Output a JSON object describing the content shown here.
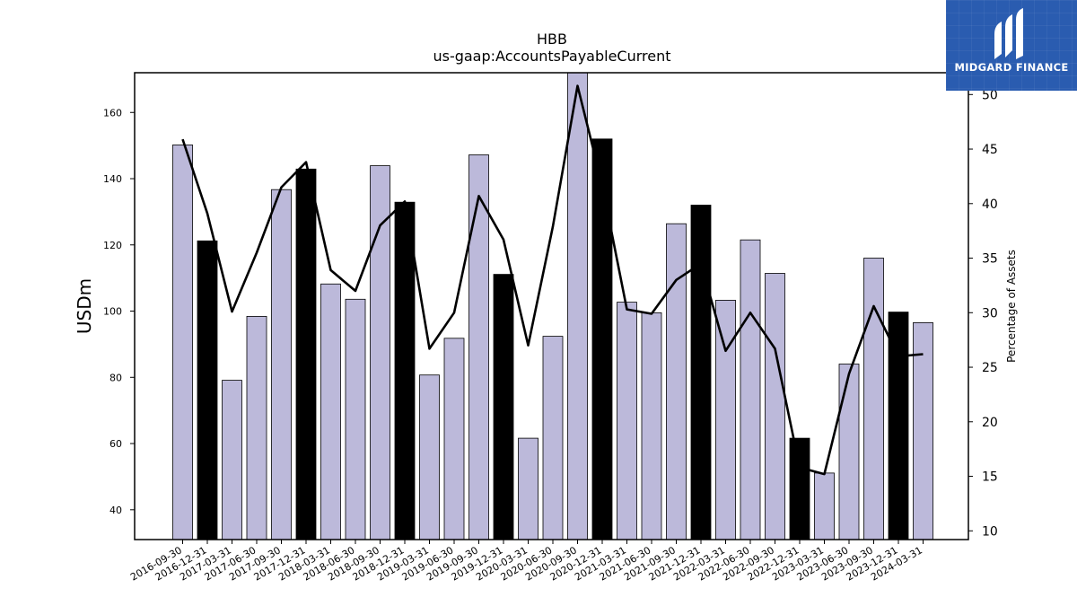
{
  "logo": {
    "text": "MIDGARD FINANCE"
  },
  "colors": {
    "bar_light": "#bcb9da",
    "bar_dark": "#000000",
    "line": "#000000",
    "logo_bg": "#2a5cb0"
  },
  "chart_data": {
    "type": "bar",
    "title": "HBB",
    "subtitle": "us-gaap:AccountsPayableCurrent",
    "ylabel": "USDm",
    "y2label": "Percentage of Assets",
    "ylim": [
      31,
      172
    ],
    "y2lim": [
      9.2,
      52.0
    ],
    "yticks": [
      40,
      60,
      80,
      100,
      120,
      140,
      160
    ],
    "y2ticks": [
      10,
      15,
      20,
      25,
      30,
      35,
      40,
      45,
      50
    ],
    "categories": [
      "2016-09-30",
      "2016-12-31",
      "2017-03-31",
      "2017-06-30",
      "2017-09-30",
      "2017-12-31",
      "2018-03-31",
      "2018-06-30",
      "2018-09-30",
      "2018-12-31",
      "2019-03-31",
      "2019-06-30",
      "2019-09-30",
      "2019-12-31",
      "2020-03-31",
      "2020-06-30",
      "2020-09-30",
      "2020-12-31",
      "2021-03-31",
      "2021-06-30",
      "2021-09-30",
      "2021-12-31",
      "2022-03-31",
      "2022-06-30",
      "2022-09-30",
      "2022-12-31",
      "2023-03-31",
      "2023-06-30",
      "2023-09-30",
      "2023-12-31",
      "2024-03-31"
    ],
    "series": [
      {
        "type": "bar",
        "values": [
          150.2,
          121.2,
          79.1,
          98.4,
          136.7,
          142.9,
          108.2,
          103.6,
          143.9,
          132.9,
          80.7,
          91.8,
          147.2,
          111.1,
          61.6,
          92.4,
          172.5,
          152.0,
          102.7,
          99.5,
          126.4,
          132.0,
          103.3,
          121.5,
          111.4,
          61.6,
          51.1,
          84.0,
          116.0,
          99.7,
          96.5
        ],
        "highlight": [
          false,
          true,
          false,
          false,
          false,
          true,
          false,
          false,
          false,
          true,
          false,
          false,
          false,
          true,
          false,
          false,
          false,
          true,
          false,
          false,
          false,
          true,
          false,
          false,
          false,
          true,
          false,
          false,
          false,
          true,
          false
        ]
      },
      {
        "type": "line",
        "axis": "right",
        "values": [
          45.9,
          39.1,
          30.1,
          35.5,
          41.5,
          43.8,
          33.9,
          32.0,
          38.0,
          40.2,
          26.7,
          30.0,
          40.7,
          36.7,
          27.0,
          37.9,
          50.8,
          41.7,
          30.3,
          29.9,
          33.0,
          34.5,
          26.5,
          30.0,
          26.7,
          15.8,
          15.2,
          24.4,
          30.6,
          26.0,
          26.2
        ]
      }
    ],
    "grid": false,
    "legend": "none"
  }
}
